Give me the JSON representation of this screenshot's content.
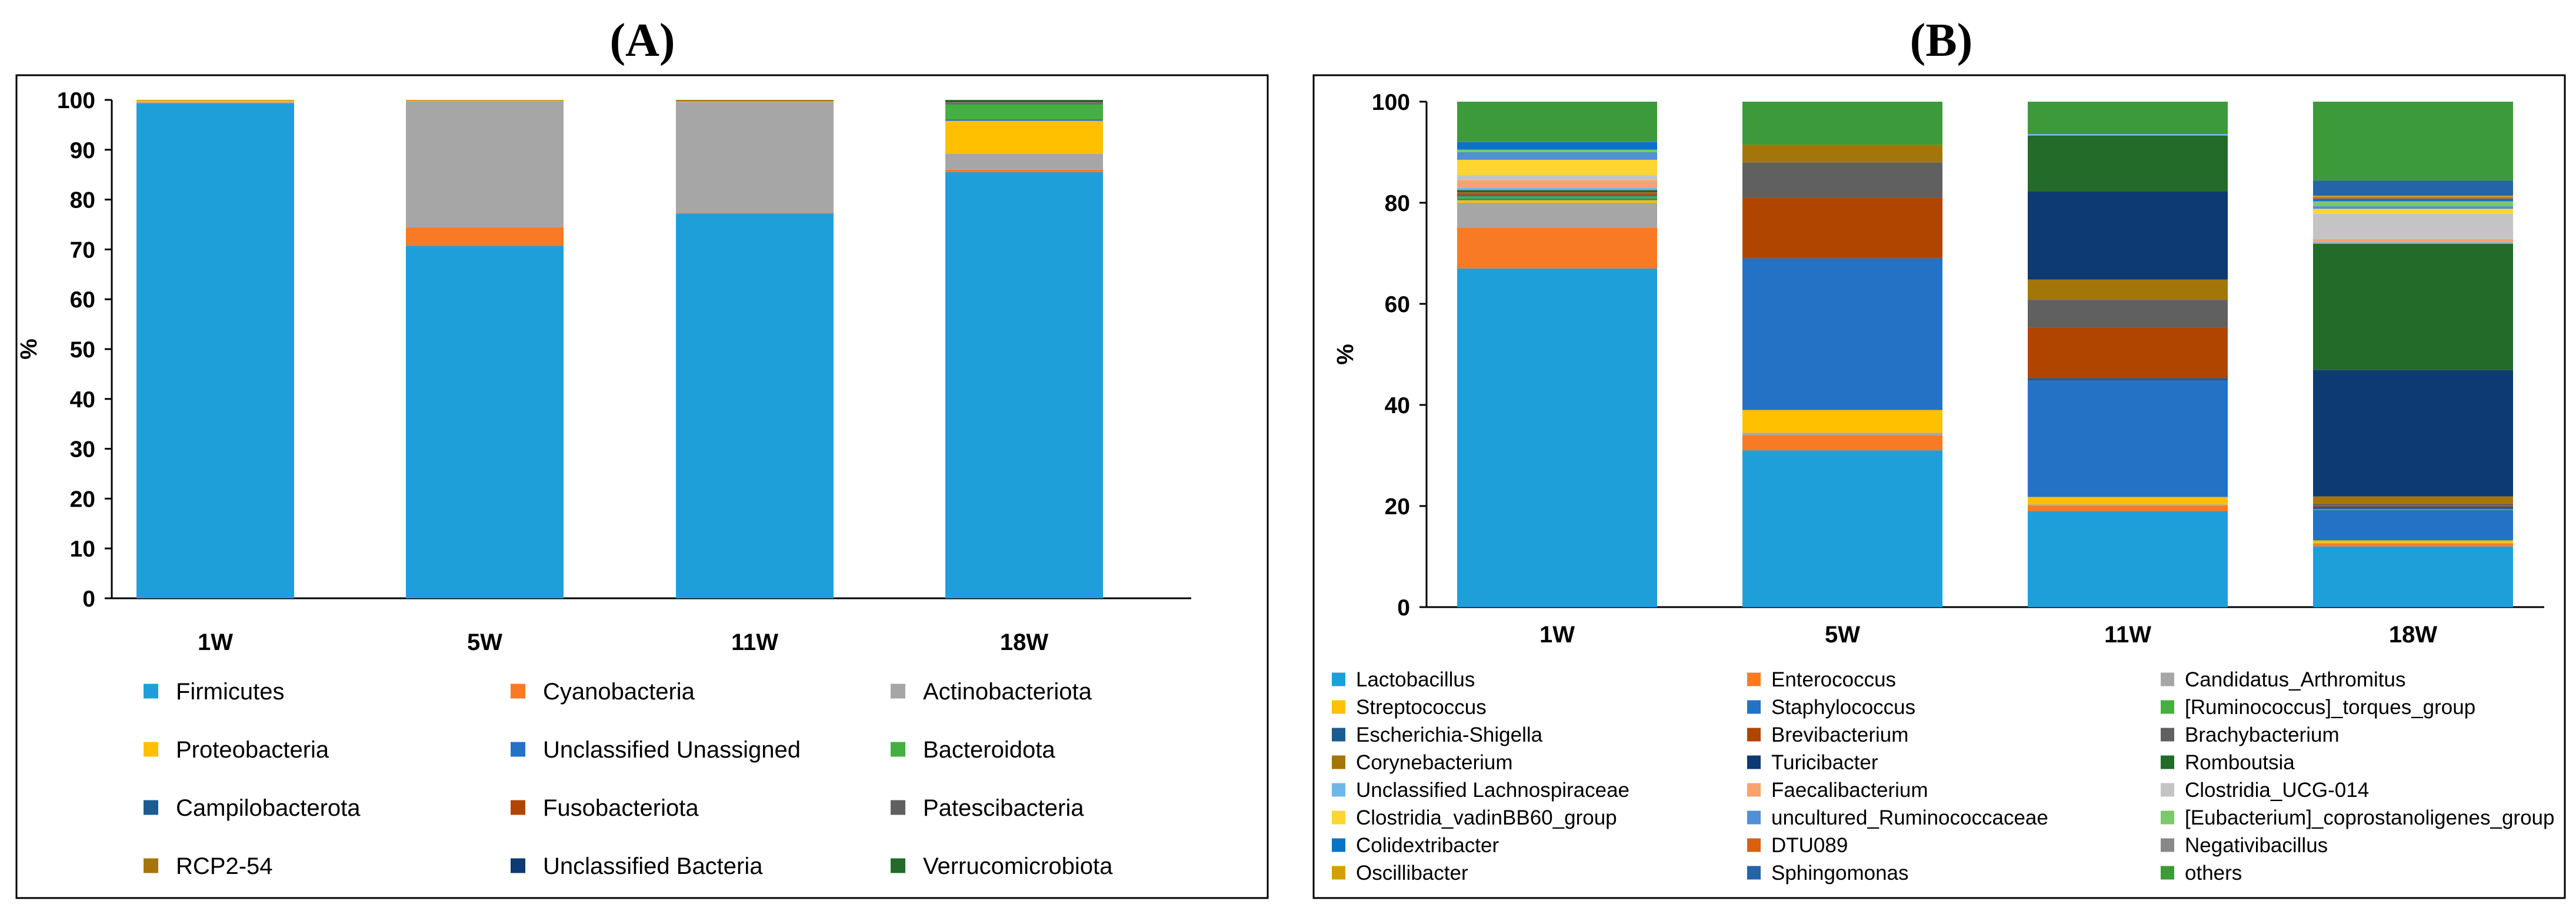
{
  "panel_a_title": "(A)",
  "panel_b_title": "(B)",
  "chart_data": [
    {
      "type": "bar",
      "stacked": true,
      "title": "(A)",
      "ylabel": "%",
      "xlabel": "",
      "ylim": [
        0,
        100
      ],
      "yticks": [
        0,
        10,
        20,
        30,
        40,
        50,
        60,
        70,
        80,
        90,
        100
      ],
      "grid": false,
      "legend_position": "bottom",
      "categories": [
        "1W",
        "5W",
        "11W",
        "18W"
      ],
      "series": [
        {
          "name": "Firmicutes",
          "color": "#1f9fd9",
          "values": [
            99.3,
            70.7,
            77.2,
            85.5
          ]
        },
        {
          "name": "Cyanobacteria",
          "color": "#f97a25",
          "values": [
            0.1,
            3.8,
            0.1,
            0.5
          ]
        },
        {
          "name": "Actinobacteriota",
          "color": "#a6a6a6",
          "values": [
            0.2,
            25.3,
            22.3,
            3.2
          ]
        },
        {
          "name": "Proteobacteria",
          "color": "#ffc000",
          "values": [
            0.3,
            0.1,
            0.1,
            6.6
          ]
        },
        {
          "name": "Unclassified Unassigned",
          "color": "#2372c6",
          "values": [
            0,
            0,
            0,
            0.3
          ]
        },
        {
          "name": "Bacteroidota",
          "color": "#45b040",
          "values": [
            0,
            0,
            0,
            3.0
          ]
        },
        {
          "name": "Campilobacterota",
          "color": "#1b5c91",
          "values": [
            0,
            0,
            0,
            0.1
          ]
        },
        {
          "name": "Fusobacteriota",
          "color": "#b04500",
          "values": [
            0,
            0,
            0,
            0.1
          ]
        },
        {
          "name": "Patescibacteria",
          "color": "#606060",
          "values": [
            0,
            0,
            0,
            0.2
          ]
        },
        {
          "name": "RCP2-54",
          "color": "#a3760a",
          "values": [
            0.1,
            0.1,
            0.3,
            0.1
          ]
        },
        {
          "name": "Unclassified Bacteria",
          "color": "#0e3a73",
          "values": [
            0,
            0,
            0,
            0.2
          ]
        },
        {
          "name": "Verrucomicrobiota",
          "color": "#236b28",
          "values": [
            0,
            0,
            0,
            0.2
          ]
        }
      ]
    },
    {
      "type": "bar",
      "stacked": true,
      "title": "(B)",
      "ylabel": "%",
      "xlabel": "",
      "ylim": [
        0,
        100
      ],
      "yticks": [
        0,
        20,
        40,
        60,
        80,
        100
      ],
      "grid": false,
      "legend_position": "bottom",
      "categories": [
        "1W",
        "5W",
        "11W",
        "18W"
      ],
      "series": [
        {
          "name": "Lactobacillus",
          "color": "#1f9fd9",
          "values": [
            67.0,
            31.0,
            19.0,
            12.0
          ]
        },
        {
          "name": "Enterococcus",
          "color": "#f97a25",
          "values": [
            8.0,
            3.0,
            1.0,
            0.5
          ]
        },
        {
          "name": "Candidatus_Arthromitus",
          "color": "#a6a6a6",
          "values": [
            5.0,
            0.5,
            0.3,
            0.2
          ]
        },
        {
          "name": "Streptococcus",
          "color": "#ffc000",
          "values": [
            0.5,
            4.5,
            1.5,
            0.5
          ]
        },
        {
          "name": "Staphylococcus",
          "color": "#2372c6",
          "values": [
            0.3,
            30.0,
            23.0,
            6.0
          ]
        },
        {
          "name": "[Ruminococcus]_torques_group",
          "color": "#45b040",
          "values": [
            0.5,
            0,
            0,
            0.2
          ]
        },
        {
          "name": "Escherichia-Shigella",
          "color": "#1b5c91",
          "values": [
            0.2,
            0,
            0.5,
            0.5
          ]
        },
        {
          "name": "Brevibacterium",
          "color": "#b04500",
          "values": [
            0.2,
            12.0,
            10.0,
            0.2
          ]
        },
        {
          "name": "Brachybacterium",
          "color": "#606060",
          "values": [
            0.2,
            7.0,
            5.5,
            0.3
          ]
        },
        {
          "name": "Corynebacterium",
          "color": "#a3760a",
          "values": [
            0.2,
            3.5,
            4.0,
            1.5
          ]
        },
        {
          "name": "Turicibacter",
          "color": "#0e3a73",
          "values": [
            0.2,
            0,
            17.5,
            25.0
          ]
        },
        {
          "name": "Romboutsia",
          "color": "#236b28",
          "values": [
            0.2,
            0,
            11.0,
            25.0
          ]
        },
        {
          "name": "Unclassified Lachnospiraceae",
          "color": "#6fb7e9",
          "values": [
            0.5,
            0,
            0.3,
            0.3
          ]
        },
        {
          "name": "Faecalibacterium",
          "color": "#f8a36b",
          "values": [
            1.5,
            0,
            0,
            0.6
          ]
        },
        {
          "name": "Clostridia_UCG-014",
          "color": "#c4c4c4",
          "values": [
            1.0,
            0,
            0,
            5.0
          ]
        },
        {
          "name": "Clostridia_vadinBB60_group",
          "color": "#ffd630",
          "values": [
            3.0,
            0,
            0,
            1.0
          ]
        },
        {
          "name": "uncultured_Ruminococcaceae",
          "color": "#4f8fd4",
          "values": [
            1.5,
            0,
            0,
            0.5
          ]
        },
        {
          "name": "[Eubacterium]_coprostanoligenes_group",
          "color": "#7cc86b",
          "values": [
            0.5,
            0,
            0,
            1.0
          ]
        },
        {
          "name": "Colidextribacter",
          "color": "#0b73c4",
          "values": [
            1.5,
            0,
            0,
            0.5
          ]
        },
        {
          "name": "DTU089",
          "color": "#d9600f",
          "values": [
            0,
            0,
            0,
            0.2
          ]
        },
        {
          "name": "Negativibacillus",
          "color": "#888888",
          "values": [
            0,
            0,
            0,
            0.2
          ]
        },
        {
          "name": "Oscillibacter",
          "color": "#d4a000",
          "values": [
            0,
            0,
            0,
            0.2
          ]
        },
        {
          "name": "Sphingomonas",
          "color": "#2564a8",
          "values": [
            0,
            0,
            0,
            3.0
          ]
        },
        {
          "name": "others",
          "color": "#3d9a3a",
          "values": [
            8.0,
            8.5,
            6.4,
            15.6
          ]
        }
      ]
    }
  ]
}
